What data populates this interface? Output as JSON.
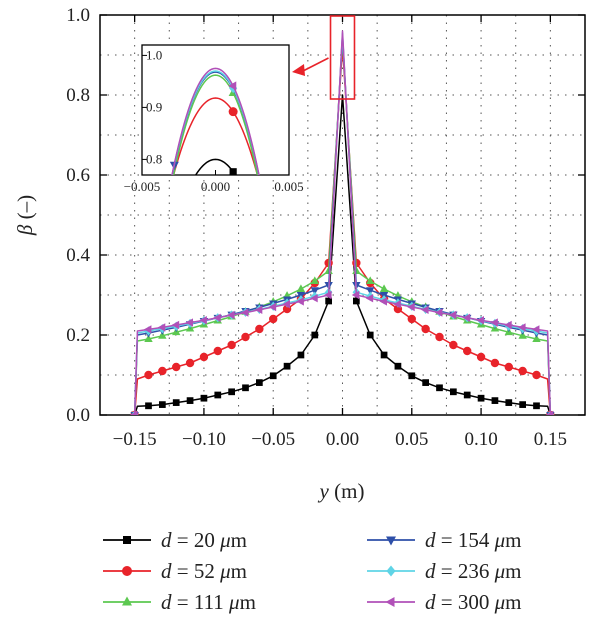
{
  "chart_data": {
    "type": "line",
    "xlabel_var": "y",
    "xlabel_unit": " (m)",
    "ylabel_var": "β",
    "ylabel_unit": " (–)",
    "xlim": [
      -0.175,
      0.175
    ],
    "ylim": [
      0.0,
      1.0
    ],
    "xticks": [
      -0.15,
      -0.1,
      -0.05,
      0.0,
      0.05,
      0.1,
      0.15
    ],
    "xtick_labels": [
      "−0.15",
      "−0.10",
      "−0.05",
      "0.00",
      "0.05",
      "0.10",
      "0.15"
    ],
    "yticks": [
      0.0,
      0.2,
      0.4,
      0.6,
      0.8,
      1.0
    ],
    "ytick_labels": [
      "0.0",
      "0.2",
      "0.4",
      "0.6",
      "0.8",
      "1.0"
    ],
    "grid": true,
    "legend_position": "bottom",
    "series": [
      {
        "name_var": "d",
        "name_value": " = 20 ",
        "name_unit": "μ",
        "name_unit2": "m",
        "color": "#000000",
        "marker": "square",
        "x": [
          -0.15,
          -0.148,
          -0.14,
          -0.13,
          -0.12,
          -0.11,
          -0.1,
          -0.09,
          -0.08,
          -0.07,
          -0.06,
          -0.05,
          -0.04,
          -0.03,
          -0.02,
          -0.01,
          0.0,
          0.01,
          0.02,
          0.03,
          0.04,
          0.05,
          0.06,
          0.07,
          0.08,
          0.09,
          0.1,
          0.11,
          0.12,
          0.13,
          0.14,
          0.148,
          0.15
        ],
        "y": [
          0.0,
          0.022,
          0.023,
          0.026,
          0.031,
          0.036,
          0.042,
          0.05,
          0.058,
          0.068,
          0.081,
          0.098,
          0.122,
          0.15,
          0.2,
          0.285,
          0.8,
          0.285,
          0.2,
          0.15,
          0.122,
          0.098,
          0.081,
          0.068,
          0.058,
          0.05,
          0.042,
          0.036,
          0.031,
          0.026,
          0.023,
          0.022,
          0.0
        ]
      },
      {
        "name_var": "d",
        "name_value": " = 52 ",
        "name_unit": "μ",
        "name_unit2": "m",
        "color": "#e8232a",
        "marker": "circle",
        "x": [
          -0.15,
          -0.148,
          -0.14,
          -0.13,
          -0.12,
          -0.11,
          -0.1,
          -0.09,
          -0.08,
          -0.07,
          -0.06,
          -0.05,
          -0.04,
          -0.03,
          -0.02,
          -0.01,
          0.0,
          0.01,
          0.02,
          0.03,
          0.04,
          0.05,
          0.06,
          0.07,
          0.08,
          0.09,
          0.1,
          0.11,
          0.12,
          0.13,
          0.14,
          0.148,
          0.15
        ],
        "y": [
          0.0,
          0.09,
          0.1,
          0.11,
          0.12,
          0.13,
          0.145,
          0.16,
          0.175,
          0.195,
          0.215,
          0.24,
          0.265,
          0.29,
          0.33,
          0.38,
          0.92,
          0.38,
          0.33,
          0.29,
          0.265,
          0.24,
          0.215,
          0.195,
          0.175,
          0.16,
          0.145,
          0.13,
          0.12,
          0.11,
          0.1,
          0.09,
          0.0
        ]
      },
      {
        "name_var": "d",
        "name_value": " = 111 ",
        "name_unit": "μ",
        "name_unit2": "m",
        "color": "#5cc850",
        "marker": "triangle-up",
        "x": [
          -0.15,
          -0.148,
          -0.14,
          -0.13,
          -0.12,
          -0.11,
          -0.1,
          -0.09,
          -0.08,
          -0.07,
          -0.06,
          -0.05,
          -0.04,
          -0.03,
          -0.02,
          -0.01,
          0.0,
          0.01,
          0.02,
          0.03,
          0.04,
          0.05,
          0.06,
          0.07,
          0.08,
          0.09,
          0.1,
          0.11,
          0.12,
          0.13,
          0.14,
          0.148,
          0.15
        ],
        "y": [
          0.0,
          0.185,
          0.19,
          0.198,
          0.207,
          0.216,
          0.226,
          0.236,
          0.246,
          0.258,
          0.27,
          0.283,
          0.298,
          0.315,
          0.335,
          0.36,
          0.94,
          0.36,
          0.335,
          0.315,
          0.298,
          0.283,
          0.27,
          0.258,
          0.246,
          0.236,
          0.226,
          0.216,
          0.207,
          0.198,
          0.19,
          0.185,
          0.0
        ]
      },
      {
        "name_var": "d",
        "name_value": " = 154 ",
        "name_unit": "μ",
        "name_unit2": "m",
        "color": "#2e4fa8",
        "marker": "triangle-down",
        "x": [
          -0.15,
          -0.148,
          -0.14,
          -0.13,
          -0.12,
          -0.11,
          -0.1,
          -0.09,
          -0.08,
          -0.07,
          -0.06,
          -0.05,
          -0.04,
          -0.03,
          -0.02,
          -0.01,
          0.0,
          0.01,
          0.02,
          0.03,
          0.04,
          0.05,
          0.06,
          0.07,
          0.08,
          0.09,
          0.1,
          0.11,
          0.12,
          0.13,
          0.14,
          0.148,
          0.15
        ],
        "y": [
          0.0,
          0.2,
          0.205,
          0.212,
          0.219,
          0.227,
          0.235,
          0.243,
          0.251,
          0.26,
          0.269,
          0.279,
          0.289,
          0.3,
          0.312,
          0.325,
          0.95,
          0.325,
          0.312,
          0.3,
          0.289,
          0.279,
          0.269,
          0.26,
          0.251,
          0.243,
          0.235,
          0.227,
          0.219,
          0.212,
          0.205,
          0.2,
          0.0
        ]
      },
      {
        "name_var": "d",
        "name_value": " = 236 ",
        "name_unit": "μ",
        "name_unit2": "m",
        "color": "#5fd4e6",
        "marker": "diamond",
        "x": [
          -0.15,
          -0.148,
          -0.14,
          -0.13,
          -0.12,
          -0.11,
          -0.1,
          -0.09,
          -0.08,
          -0.07,
          -0.06,
          -0.05,
          -0.04,
          -0.03,
          -0.02,
          -0.01,
          0.0,
          0.01,
          0.02,
          0.03,
          0.04,
          0.05,
          0.06,
          0.07,
          0.08,
          0.09,
          0.1,
          0.11,
          0.12,
          0.13,
          0.14,
          0.148,
          0.15
        ],
        "y": [
          0.0,
          0.205,
          0.21,
          0.216,
          0.222,
          0.229,
          0.236,
          0.243,
          0.25,
          0.257,
          0.264,
          0.272,
          0.28,
          0.288,
          0.297,
          0.307,
          0.955,
          0.307,
          0.297,
          0.288,
          0.28,
          0.272,
          0.264,
          0.257,
          0.25,
          0.243,
          0.236,
          0.229,
          0.222,
          0.216,
          0.21,
          0.205,
          0.0
        ]
      },
      {
        "name_var": "d",
        "name_value": " = 300 ",
        "name_unit": "μ",
        "name_unit2": "m",
        "color": "#b150b8",
        "marker": "triangle-left",
        "x": [
          -0.15,
          -0.148,
          -0.14,
          -0.13,
          -0.12,
          -0.11,
          -0.1,
          -0.09,
          -0.08,
          -0.07,
          -0.06,
          -0.05,
          -0.04,
          -0.03,
          -0.02,
          -0.01,
          0.0,
          0.01,
          0.02,
          0.03,
          0.04,
          0.05,
          0.06,
          0.07,
          0.08,
          0.09,
          0.1,
          0.11,
          0.12,
          0.13,
          0.14,
          0.148,
          0.15
        ],
        "y": [
          0.0,
          0.21,
          0.214,
          0.219,
          0.225,
          0.231,
          0.237,
          0.243,
          0.25,
          0.256,
          0.263,
          0.27,
          0.277,
          0.284,
          0.292,
          0.3,
          0.96,
          0.3,
          0.292,
          0.284,
          0.277,
          0.27,
          0.263,
          0.256,
          0.25,
          0.243,
          0.237,
          0.231,
          0.225,
          0.219,
          0.214,
          0.21,
          0.0
        ]
      }
    ],
    "inset": {
      "xlim": [
        -0.005,
        0.005
      ],
      "ylim": [
        0.77,
        1.02
      ],
      "xticks": [
        -0.005,
        0.0,
        0.005
      ],
      "xtick_labels": [
        "−0.005",
        "0.000",
        "0.005"
      ],
      "yticks": [
        0.8,
        0.9,
        1.0
      ],
      "ytick_labels": [
        "0.8",
        "0.9",
        "1.0"
      ],
      "zoom_box_x": [
        -0.0036,
        0.0036
      ],
      "zoom_box_y": [
        0.79,
        0.985
      ],
      "curves": [
        {
          "peak": 0.8,
          "halfwidth": 0.0022,
          "marker_x": 0.0012
        },
        {
          "peak": 0.918,
          "halfwidth": 0.0033,
          "marker_x": 0.0012
        },
        {
          "peak": 0.962,
          "halfwidth": 0.0032,
          "marker_x": 0.0012
        },
        {
          "peak": 0.968,
          "halfwidth": 0.0033,
          "marker_x": -0.0028
        },
        {
          "peak": 0.97,
          "halfwidth": 0.0033,
          "marker_x": 0.0012
        },
        {
          "peak": 0.975,
          "halfwidth": 0.0033,
          "marker_x": 0.0012
        }
      ]
    },
    "arrow_color": "#e8232a"
  }
}
